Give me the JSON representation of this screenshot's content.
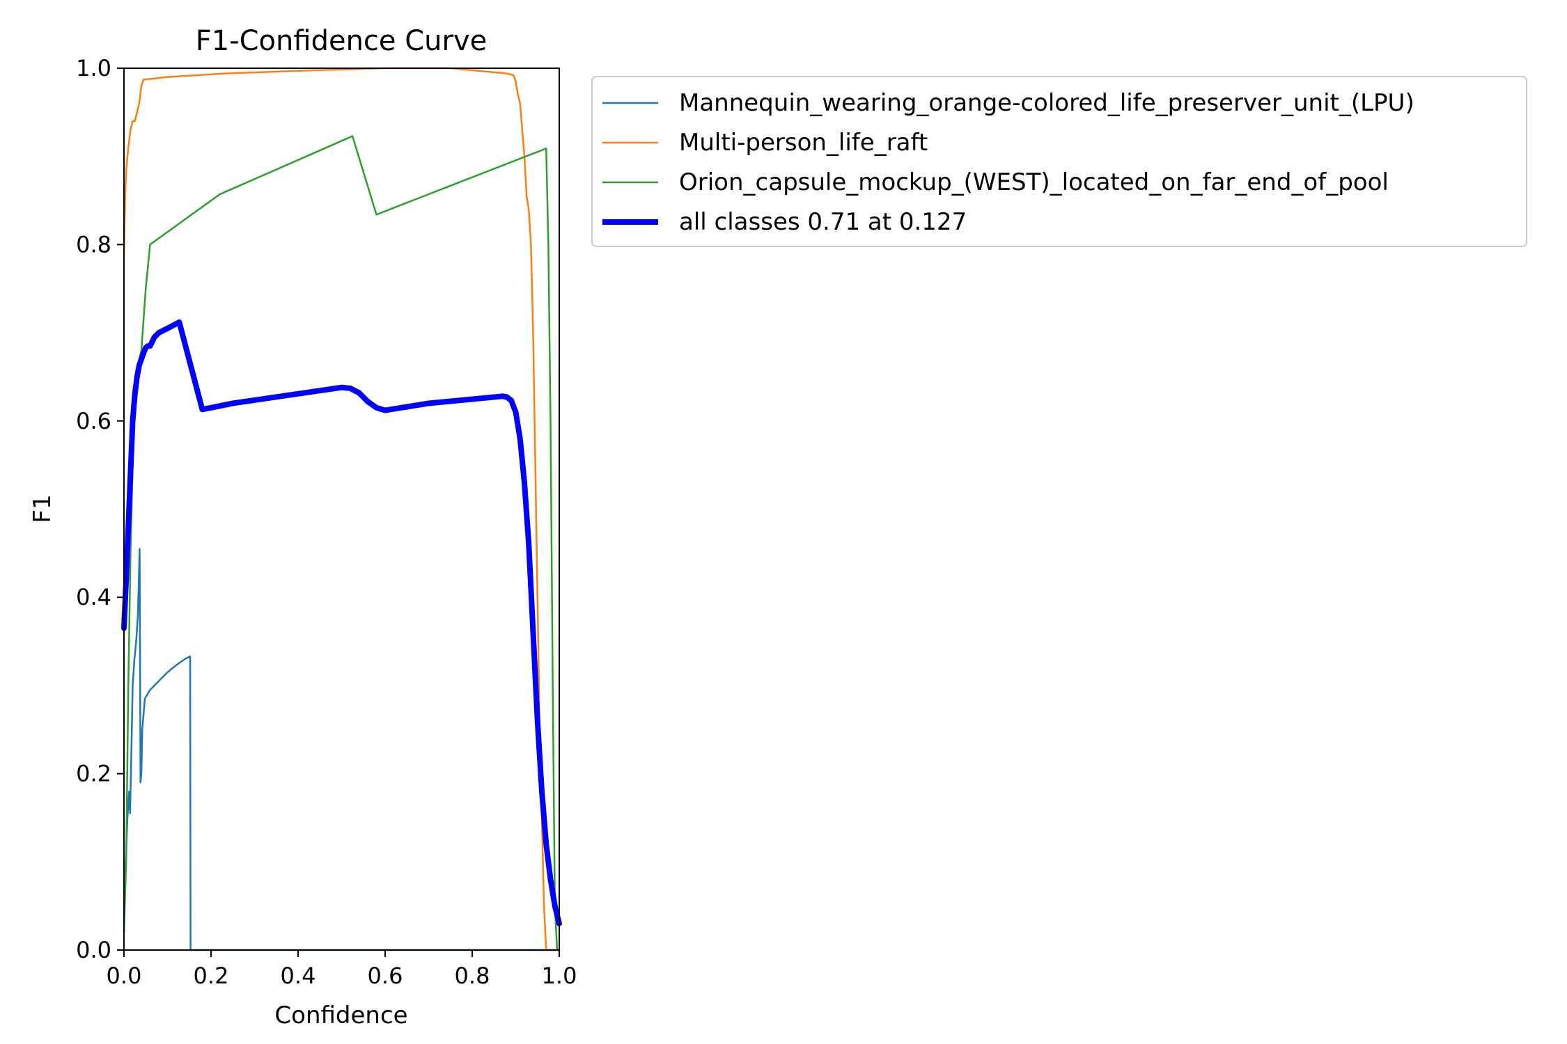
{
  "chart_data": {
    "type": "line",
    "title": "F1-Confidence Curve",
    "xlabel": "Confidence",
    "ylabel": "F1",
    "xlim": [
      0,
      1
    ],
    "ylim": [
      0,
      1
    ],
    "xticks": [
      "0.0",
      "0.2",
      "0.4",
      "0.6",
      "0.8",
      "1.0"
    ],
    "yticks": [
      "0.0",
      "0.2",
      "0.4",
      "0.6",
      "0.8",
      "1.0"
    ],
    "grid": false,
    "legend_position": "outside upper-right",
    "series": [
      {
        "name": "Mannequin_wearing_orange-colored_life_preserver_unit_(LPU)",
        "color": "#1f77b4",
        "points": [
          [
            0.0,
            0.02
          ],
          [
            0.004,
            0.1
          ],
          [
            0.008,
            0.15
          ],
          [
            0.012,
            0.18
          ],
          [
            0.014,
            0.155
          ],
          [
            0.016,
            0.2
          ],
          [
            0.018,
            0.25
          ],
          [
            0.02,
            0.3
          ],
          [
            0.024,
            0.33
          ],
          [
            0.028,
            0.35
          ],
          [
            0.032,
            0.38
          ],
          [
            0.036,
            0.455
          ],
          [
            0.038,
            0.19
          ],
          [
            0.04,
            0.2
          ],
          [
            0.042,
            0.25
          ],
          [
            0.048,
            0.285
          ],
          [
            0.06,
            0.295
          ],
          [
            0.08,
            0.305
          ],
          [
            0.1,
            0.315
          ],
          [
            0.12,
            0.323
          ],
          [
            0.14,
            0.33
          ],
          [
            0.152,
            0.333
          ],
          [
            0.153,
            0.0
          ],
          [
            1.0,
            0.0
          ]
        ]
      },
      {
        "name": "Multi-person_life_raft",
        "color": "#ff7f0e",
        "points": [
          [
            0.0,
            0.79
          ],
          [
            0.003,
            0.86
          ],
          [
            0.006,
            0.89
          ],
          [
            0.01,
            0.91
          ],
          [
            0.015,
            0.93
          ],
          [
            0.02,
            0.94
          ],
          [
            0.025,
            0.94
          ],
          [
            0.03,
            0.95
          ],
          [
            0.035,
            0.96
          ],
          [
            0.04,
            0.98
          ],
          [
            0.045,
            0.987
          ],
          [
            0.1,
            0.99
          ],
          [
            0.23,
            0.994
          ],
          [
            0.4,
            0.997
          ],
          [
            0.6,
            1.0
          ],
          [
            0.75,
            1.0
          ],
          [
            0.88,
            0.994
          ],
          [
            0.895,
            0.992
          ],
          [
            0.9,
            0.985
          ],
          [
            0.905,
            0.97
          ],
          [
            0.91,
            0.96
          ],
          [
            0.915,
            0.93
          ],
          [
            0.92,
            0.9
          ],
          [
            0.925,
            0.855
          ],
          [
            0.93,
            0.84
          ],
          [
            0.935,
            0.8
          ],
          [
            0.94,
            0.7
          ],
          [
            0.945,
            0.55
          ],
          [
            0.95,
            0.4
          ],
          [
            0.955,
            0.25
          ],
          [
            0.96,
            0.15
          ],
          [
            0.965,
            0.05
          ],
          [
            0.97,
            0.0
          ],
          [
            1.0,
            0.0
          ]
        ]
      },
      {
        "name": "Orion_capsule_mockup_(WEST)_located_on_far_end_of_pool",
        "color": "#2ca02c",
        "points": [
          [
            0.0,
            0.02
          ],
          [
            0.005,
            0.1
          ],
          [
            0.01,
            0.3
          ],
          [
            0.015,
            0.45
          ],
          [
            0.02,
            0.55
          ],
          [
            0.025,
            0.62
          ],
          [
            0.03,
            0.66
          ],
          [
            0.04,
            0.68
          ],
          [
            0.05,
            0.75
          ],
          [
            0.06,
            0.8
          ],
          [
            0.22,
            0.857
          ],
          [
            0.525,
            0.923
          ],
          [
            0.58,
            0.834
          ],
          [
            0.97,
            0.909
          ],
          [
            0.975,
            0.8
          ],
          [
            0.98,
            0.6
          ],
          [
            0.985,
            0.3
          ],
          [
            0.99,
            0.05
          ],
          [
            0.995,
            0.0
          ],
          [
            1.0,
            0.0
          ]
        ]
      },
      {
        "name": "all classes 0.71 at 0.127",
        "color": "#0000ff",
        "bold": true,
        "points": [
          [
            0.0,
            0.365
          ],
          [
            0.005,
            0.42
          ],
          [
            0.01,
            0.48
          ],
          [
            0.015,
            0.54
          ],
          [
            0.02,
            0.6
          ],
          [
            0.025,
            0.63
          ],
          [
            0.03,
            0.65
          ],
          [
            0.035,
            0.663
          ],
          [
            0.04,
            0.67
          ],
          [
            0.045,
            0.677
          ],
          [
            0.05,
            0.683
          ],
          [
            0.055,
            0.685
          ],
          [
            0.06,
            0.685
          ],
          [
            0.065,
            0.69
          ],
          [
            0.07,
            0.695
          ],
          [
            0.08,
            0.7
          ],
          [
            0.1,
            0.705
          ],
          [
            0.127,
            0.712
          ],
          [
            0.18,
            0.613
          ],
          [
            0.2,
            0.615
          ],
          [
            0.25,
            0.62
          ],
          [
            0.5,
            0.638
          ],
          [
            0.52,
            0.637
          ],
          [
            0.54,
            0.632
          ],
          [
            0.56,
            0.622
          ],
          [
            0.58,
            0.615
          ],
          [
            0.6,
            0.612
          ],
          [
            0.7,
            0.62
          ],
          [
            0.87,
            0.628
          ],
          [
            0.88,
            0.627
          ],
          [
            0.89,
            0.623
          ],
          [
            0.9,
            0.61
          ],
          [
            0.91,
            0.58
          ],
          [
            0.92,
            0.53
          ],
          [
            0.93,
            0.46
          ],
          [
            0.94,
            0.36
          ],
          [
            0.95,
            0.26
          ],
          [
            0.96,
            0.18
          ],
          [
            0.97,
            0.12
          ],
          [
            0.98,
            0.08
          ],
          [
            0.99,
            0.05
          ],
          [
            1.0,
            0.03
          ]
        ]
      }
    ]
  }
}
